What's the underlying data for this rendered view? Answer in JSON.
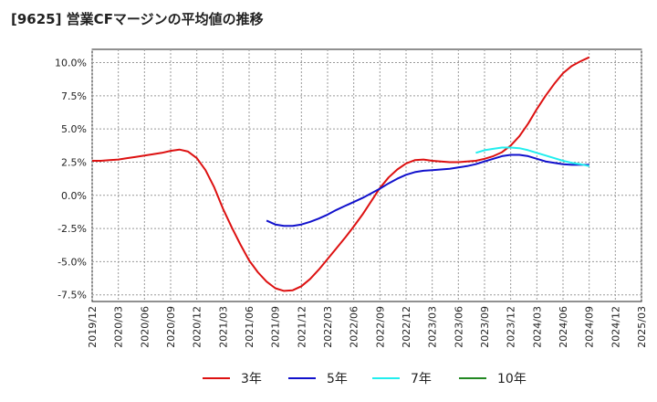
{
  "chart_data": {
    "type": "line",
    "title": "[9625]  営業CFマージンの平均値の推移",
    "ylim": [
      -8,
      11
    ],
    "yticks": [
      10.0,
      7.5,
      5.0,
      2.5,
      0.0,
      -2.5,
      -5.0,
      -7.5
    ],
    "ytick_labels": [
      "10.0%",
      "7.5%",
      "5.0%",
      "2.5%",
      "0.0%",
      "-2.5%",
      "-5.0%",
      "-7.5%"
    ],
    "x_ticks": [
      "2019/12",
      "2020/03",
      "2020/06",
      "2020/09",
      "2020/12",
      "2021/03",
      "2021/06",
      "2021/09",
      "2021/12",
      "2022/03",
      "2022/06",
      "2022/09",
      "2022/12",
      "2023/03",
      "2023/06",
      "2023/09",
      "2023/12",
      "2024/03",
      "2024/06",
      "2024/09",
      "2024/12",
      "2025/03"
    ],
    "grid": true,
    "legend_position": "bottom",
    "series": [
      {
        "name": "3年",
        "color": "#dd1111",
        "points": [
          [
            "2019/12",
            2.6
          ],
          [
            "2020/01",
            2.6
          ],
          [
            "2020/02",
            2.65
          ],
          [
            "2020/03",
            2.7
          ],
          [
            "2020/04",
            2.8
          ],
          [
            "2020/05",
            2.9
          ],
          [
            "2020/06",
            3.0
          ],
          [
            "2020/07",
            3.1
          ],
          [
            "2020/08",
            3.2
          ],
          [
            "2020/09",
            3.35
          ],
          [
            "2020/10",
            3.45
          ],
          [
            "2020/11",
            3.3
          ],
          [
            "2020/12",
            2.8
          ],
          [
            "2021/01",
            1.9
          ],
          [
            "2021/02",
            0.6
          ],
          [
            "2021/03",
            -1.0
          ],
          [
            "2021/04",
            -2.4
          ],
          [
            "2021/05",
            -3.7
          ],
          [
            "2021/06",
            -4.9
          ],
          [
            "2021/07",
            -5.8
          ],
          [
            "2021/08",
            -6.5
          ],
          [
            "2021/09",
            -7.0
          ],
          [
            "2021/10",
            -7.2
          ],
          [
            "2021/11",
            -7.15
          ],
          [
            "2021/12",
            -6.85
          ],
          [
            "2022/01",
            -6.3
          ],
          [
            "2022/02",
            -5.6
          ],
          [
            "2022/03",
            -4.8
          ],
          [
            "2022/04",
            -4.0
          ],
          [
            "2022/05",
            -3.2
          ],
          [
            "2022/06",
            -2.35
          ],
          [
            "2022/07",
            -1.45
          ],
          [
            "2022/08",
            -0.45
          ],
          [
            "2022/09",
            0.55
          ],
          [
            "2022/10",
            1.35
          ],
          [
            "2022/11",
            1.95
          ],
          [
            "2022/12",
            2.4
          ],
          [
            "2023/01",
            2.65
          ],
          [
            "2023/02",
            2.7
          ],
          [
            "2023/03",
            2.6
          ],
          [
            "2023/04",
            2.55
          ],
          [
            "2023/05",
            2.5
          ],
          [
            "2023/06",
            2.5
          ],
          [
            "2023/07",
            2.55
          ],
          [
            "2023/08",
            2.6
          ],
          [
            "2023/09",
            2.75
          ],
          [
            "2023/10",
            2.95
          ],
          [
            "2023/11",
            3.25
          ],
          [
            "2023/12",
            3.75
          ],
          [
            "2024/01",
            4.45
          ],
          [
            "2024/02",
            5.4
          ],
          [
            "2024/03",
            6.5
          ],
          [
            "2024/04",
            7.5
          ],
          [
            "2024/05",
            8.4
          ],
          [
            "2024/06",
            9.2
          ],
          [
            "2024/07",
            9.75
          ],
          [
            "2024/08",
            10.1
          ],
          [
            "2024/09",
            10.4
          ]
        ]
      },
      {
        "name": "5年",
        "color": "#1111cc",
        "points": [
          [
            "2021/08",
            -1.9
          ],
          [
            "2021/09",
            -2.2
          ],
          [
            "2021/10",
            -2.3
          ],
          [
            "2021/11",
            -2.3
          ],
          [
            "2021/12",
            -2.2
          ],
          [
            "2022/01",
            -2.0
          ],
          [
            "2022/02",
            -1.75
          ],
          [
            "2022/03",
            -1.45
          ],
          [
            "2022/04",
            -1.1
          ],
          [
            "2022/05",
            -0.8
          ],
          [
            "2022/06",
            -0.5
          ],
          [
            "2022/07",
            -0.2
          ],
          [
            "2022/08",
            0.15
          ],
          [
            "2022/09",
            0.5
          ],
          [
            "2022/10",
            0.9
          ],
          [
            "2022/11",
            1.25
          ],
          [
            "2022/12",
            1.55
          ],
          [
            "2023/01",
            1.75
          ],
          [
            "2023/02",
            1.85
          ],
          [
            "2023/03",
            1.9
          ],
          [
            "2023/04",
            1.95
          ],
          [
            "2023/05",
            2.0
          ],
          [
            "2023/06",
            2.1
          ],
          [
            "2023/07",
            2.2
          ],
          [
            "2023/08",
            2.35
          ],
          [
            "2023/09",
            2.55
          ],
          [
            "2023/10",
            2.75
          ],
          [
            "2023/11",
            2.95
          ],
          [
            "2023/12",
            3.05
          ],
          [
            "2024/01",
            3.05
          ],
          [
            "2024/02",
            2.95
          ],
          [
            "2024/03",
            2.75
          ],
          [
            "2024/04",
            2.55
          ],
          [
            "2024/05",
            2.45
          ],
          [
            "2024/06",
            2.35
          ],
          [
            "2024/07",
            2.3
          ],
          [
            "2024/08",
            2.3
          ],
          [
            "2024/09",
            2.3
          ]
        ]
      },
      {
        "name": "7年",
        "color": "#22eeee",
        "points": [
          [
            "2023/08",
            3.2
          ],
          [
            "2023/09",
            3.4
          ],
          [
            "2023/10",
            3.5
          ],
          [
            "2023/11",
            3.6
          ],
          [
            "2023/12",
            3.6
          ],
          [
            "2024/01",
            3.55
          ],
          [
            "2024/02",
            3.4
          ],
          [
            "2024/03",
            3.2
          ],
          [
            "2024/04",
            3.0
          ],
          [
            "2024/05",
            2.8
          ],
          [
            "2024/06",
            2.6
          ],
          [
            "2024/07",
            2.45
          ],
          [
            "2024/08",
            2.35
          ],
          [
            "2024/09",
            2.2
          ]
        ]
      },
      {
        "name": "10年",
        "color": "#228822",
        "points": []
      }
    ]
  }
}
